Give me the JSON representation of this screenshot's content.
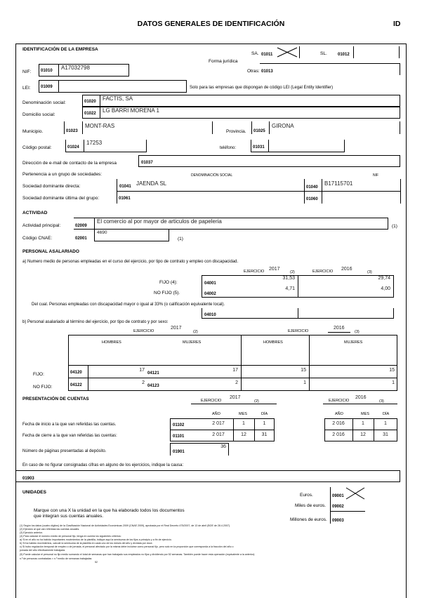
{
  "header": {
    "title": "DATOS GENERALES DE IDENTIFICACIÓN",
    "code": "ID"
  },
  "empresa": {
    "section": "IDENTIFICACIÓN DE LA EMPRESA",
    "forma_juridica_label": "Forma jurídica",
    "sa_label": "SA.",
    "sa_code": "01011",
    "sa_checked": true,
    "sl_label": "SL.",
    "sl_code": "01012",
    "otras_label": "Otras:",
    "otras_code": "01013",
    "nif_label": "NIF:",
    "nif_code": "01010",
    "nif_value": "A17032798",
    "lei_label": "LEI:",
    "lei_code": "01009",
    "lei_note": "Solo para las empresas que dispongan de código LEI (Legal Entity Identifier)",
    "denominacion_label": "Denominación social:",
    "denominacion_code": "01020",
    "denominacion_value": "FACTIS, SA",
    "domicilio_label": "Domicilio social:",
    "domicilio_code": "01022",
    "domicilio_value": "LG BARRI MORENA 1",
    "municipio_label": "Municipio.",
    "municipio_code": "01023",
    "municipio_value": "MONT-RAS",
    "provincia_label": "Provincia.",
    "provincia_code": "01025",
    "provincia_value": "GIRONA",
    "cp_label": "Código postal:",
    "cp_code": "01024",
    "cp_value": "17253",
    "telefono_label": "teléfono:",
    "telefono_code": "01031",
    "email_label": "Dirección de e-mail de contacto de la empresa",
    "email_code": "01037",
    "grupo_label": "Pertenencia a un grupo de sociedades:",
    "denominacion_col": "DENOMINACIÓN SOCIAL",
    "nif_col": "NIF",
    "directa_label": "Sociedad dominante directa:",
    "directa_code": "01041",
    "directa_value": "JAENDA SL",
    "directa_nif_code": "01040",
    "directa_nif_value": "B17115701",
    "ultima_label": "Sociedad dominante última del grupo:",
    "ultima_code": "01061",
    "ultima_nif_code": "01060"
  },
  "actividad": {
    "section": "ACTIVIDAD",
    "principal_label": "Actividad principal:",
    "principal_code": "02009",
    "principal_value": "El comercio al por mayor de articulos de papeleria",
    "note": "(1)",
    "cnae_label": "Código CNAE:",
    "cnae_code": "02001",
    "cnae_value": "4690"
  },
  "personal": {
    "section": "PERSONAL ASALARIADO",
    "a_text": "a) Numero medio de personas empleadas en el curso del ejercicio, por tipo de contrato y empleo con discapacidad.",
    "ejercicio_label": "EJERCICIO",
    "year1": "2017",
    "note1": "(2)",
    "year2": "2016",
    "note2": "(3)",
    "fijo_label": "FIJO (4):",
    "fijo_code": "04001",
    "fijo_y1": "31,53",
    "fijo_y2": "29,74",
    "nofijo_label": "NO FIJO (5).",
    "nofijo_code": "04002",
    "nofijo_y1": "4,71",
    "nofijo_y2": "4,00",
    "disc_text": "Del cual. Personas empleadas con discapacidad mayor o igual al 33% (o calificación equivalente local).",
    "disc_code": "04010",
    "b_text": "b) Personal asalariado al término del ejercicio, por tipo de contrato y por sexo:",
    "hombres": "HOMBRES",
    "mujeres": "MUJERES",
    "b_fijo_label": "FIJO:",
    "b_nofijo_label": "NO FIJO:",
    "rows": [
      {
        "code_h": "04120",
        "h1": "17",
        "code_m": "04121",
        "m1": "17",
        "h2": "15",
        "m2": "15"
      },
      {
        "code_h": "04122",
        "h1": "2",
        "code_m": "04123",
        "m1": "2",
        "h2": "1",
        "m2": "1"
      }
    ]
  },
  "cuentas": {
    "section": "PRESENTACIÓN DE CUENTAS",
    "anio": "AÑO",
    "mes": "MES",
    "dia": "DÍA",
    "inicio_label": "Fecha de inicio a la que van referidas las cuentas.",
    "inicio_code": "01102",
    "inicio_y1": [
      "2 017",
      "1",
      "1"
    ],
    "inicio_y2": [
      "2 016",
      "1",
      "1"
    ],
    "cierre_label": "Fecha de cierre a la que van referidas las cuentas:",
    "cierre_code": "01101",
    "cierre_y1": [
      "2 017",
      "12",
      "31"
    ],
    "cierre_y2": [
      "2 016",
      "12",
      "31"
    ],
    "paginas_label": "Número de páginas presentadas al depósito.",
    "paginas_code": "01901",
    "paginas_value": "36",
    "causa_label": "En caso de no figurar consignadas cifras en alguno de los ejercicios, indique la causa:",
    "causa_code": "01903"
  },
  "unidades": {
    "section": "UNIDADES",
    "text1": "Marque con una X la unidad en la que ha elaborado todos los documentos",
    "text2": "que integran sus cuentas anuales.",
    "euros_label": "Euros.",
    "euros_code": "09001",
    "euros_checked": true,
    "miles_label": "Miles de euros.",
    "miles_code": "09002",
    "millones_label": "Millones de euros.",
    "millones_code": "09003"
  },
  "footnotes": [
    "(1)   Según los datos (cuatro dígitos) de la Clasificación Nacional de Actividades Económicas 2009 (CNAE 2009), aprobada por el Real Decreto 475/2007, de 13 de abril (BOE de 28.4.2007).",
    "(2)   Ejercicio al que van referidas las cuentas anuales.",
    "(3)   Ejercicio anterior.",
    "(4)   Para calcular el número medio de personal fijo, tenga en cuenta los siguientes criterios:",
    "        a)  Si en el año no ha habido importantes movimientos de la plantilla, indique aquí la semisuma de los fijos a principio y a fin de ejercicio.",
    "        b)  Si ha habido movimientos, calcule la semisuma de la plantilla en cada uno de los meses del año y divídala por doce.",
    "        c)  Si hubo regulación temporal de empleo o de jornada, el personal afectado por la misma debe incluirse como personal fijo, pero solo en la proporción que corresponda a la fracción del año o",
    "             jornada del año efectivamente trabajada.",
    "(5)   Puede calcular el personal no fijo medio sumando el total de semanas que han trabajado sus empleados no fijos y dividiendo por 52 semanas. También puede hacer esta operación (equivalente a la anterior):",
    "        n.º de personas contratadas × n.º medio de semanas trabajadas",
    "52"
  ]
}
